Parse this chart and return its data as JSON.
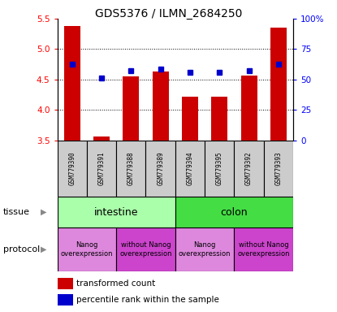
{
  "title": "GDS5376 / ILMN_2684250",
  "samples": [
    "GSM779390",
    "GSM779391",
    "GSM779388",
    "GSM779389",
    "GSM779394",
    "GSM779395",
    "GSM779392",
    "GSM779393"
  ],
  "red_values": [
    5.38,
    3.57,
    4.55,
    4.63,
    4.22,
    4.22,
    4.57,
    5.35
  ],
  "blue_values": [
    4.75,
    4.53,
    4.64,
    4.67,
    4.62,
    4.62,
    4.65,
    4.75
  ],
  "ylim_left": [
    3.5,
    5.5
  ],
  "ylim_right": [
    0,
    100
  ],
  "yticks_left": [
    3.5,
    4.0,
    4.5,
    5.0,
    5.5
  ],
  "yticks_right": [
    0,
    25,
    50,
    75,
    100
  ],
  "ytick_labels_right": [
    "0",
    "25",
    "50",
    "75",
    "100%"
  ],
  "bar_color": "#cc0000",
  "dot_color": "#0000cc",
  "tissue_labels": [
    {
      "label": "intestine",
      "start": 0,
      "end": 3,
      "color": "#aaffaa"
    },
    {
      "label": "colon",
      "start": 4,
      "end": 7,
      "color": "#44dd44"
    }
  ],
  "protocol_groups": [
    {
      "label": "Nanog\noverexpression",
      "start": 0,
      "end": 1,
      "color": "#dd88dd"
    },
    {
      "label": "without Nanog\noverexpression",
      "start": 2,
      "end": 3,
      "color": "#cc44cc"
    },
    {
      "label": "Nanog\noverexpression",
      "start": 4,
      "end": 5,
      "color": "#dd88dd"
    },
    {
      "label": "without Nanog\noverexpression",
      "start": 6,
      "end": 7,
      "color": "#cc44cc"
    }
  ],
  "legend_red_label": "transformed count",
  "legend_blue_label": "percentile rank within the sample",
  "tissue_row_label": "tissue",
  "protocol_row_label": "protocol",
  "sample_box_color": "#cccccc",
  "grid_yticks": [
    4.0,
    4.5,
    5.0
  ]
}
